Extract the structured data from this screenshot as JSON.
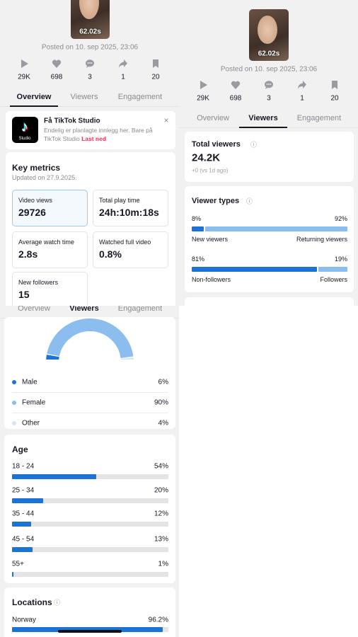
{
  "post": {
    "duration": "62.02s",
    "posted": "Posted on 10. sep 2025, 23:06",
    "stats": [
      "29K",
      "698",
      "3",
      "1",
      "20"
    ]
  },
  "tabs": [
    "Overview",
    "Viewers",
    "Engagement"
  ],
  "promo": {
    "title": "Få TikTok Studio",
    "text": "Endelig er planlagte innlegg her. Bare på TikTok Studio",
    "link": "Last ned",
    "app_label": "Studio"
  },
  "key_metrics": {
    "title": "Key metrics",
    "updated": "Updated on 27.9.2025.",
    "items": [
      {
        "label": "Video views",
        "value": 29726
      },
      {
        "label": "Total play time",
        "value": "24h:10m:18s"
      },
      {
        "label": "Average watch time",
        "value": "2.8s"
      },
      {
        "label": "Watched full video",
        "value": "0.8%"
      },
      {
        "label": "New followers",
        "value": 15
      }
    ]
  },
  "total_viewers": {
    "title": "Total viewers",
    "value": "24.2K",
    "change": "+0 (vs 1d ago)"
  },
  "viewer_types": {
    "title": "Viewer types",
    "groups": [
      {
        "left": {
          "label": "New viewers",
          "value": 8,
          "value_label": "8%"
        },
        "right": {
          "label": "Returning viewers",
          "value": 92,
          "value_label": "92%"
        }
      },
      {
        "left": {
          "label": "Non-followers",
          "value": 81,
          "value_label": "81%"
        },
        "right": {
          "label": "Followers",
          "value": 19,
          "value_label": "19%"
        }
      }
    ]
  },
  "gender": {
    "segments": [
      {
        "label": "Male",
        "value": 6,
        "value_label": "6%",
        "color": "#1b74d4"
      },
      {
        "label": "Female",
        "value": 90,
        "value_label": "90%",
        "color": "#8bbdee"
      },
      {
        "label": "Other",
        "value": 4,
        "value_label": "4%",
        "color": "#d3e5f8"
      }
    ]
  },
  "age": {
    "title": "Age",
    "rows": [
      {
        "label": "18 - 24",
        "value": 54,
        "value_label": "54%"
      },
      {
        "label": "25 - 34",
        "value": 20,
        "value_label": "20%"
      },
      {
        "label": "35 - 44",
        "value": 12,
        "value_label": "12%"
      },
      {
        "label": "45 - 54",
        "value": 13,
        "value_label": "13%"
      },
      {
        "label": "55+",
        "value": 1,
        "value_label": "1%"
      }
    ]
  },
  "locations": {
    "title": "Locations",
    "rows": [
      {
        "label": "Norway",
        "value": 96.2,
        "value_label": "96.2%"
      }
    ]
  }
}
